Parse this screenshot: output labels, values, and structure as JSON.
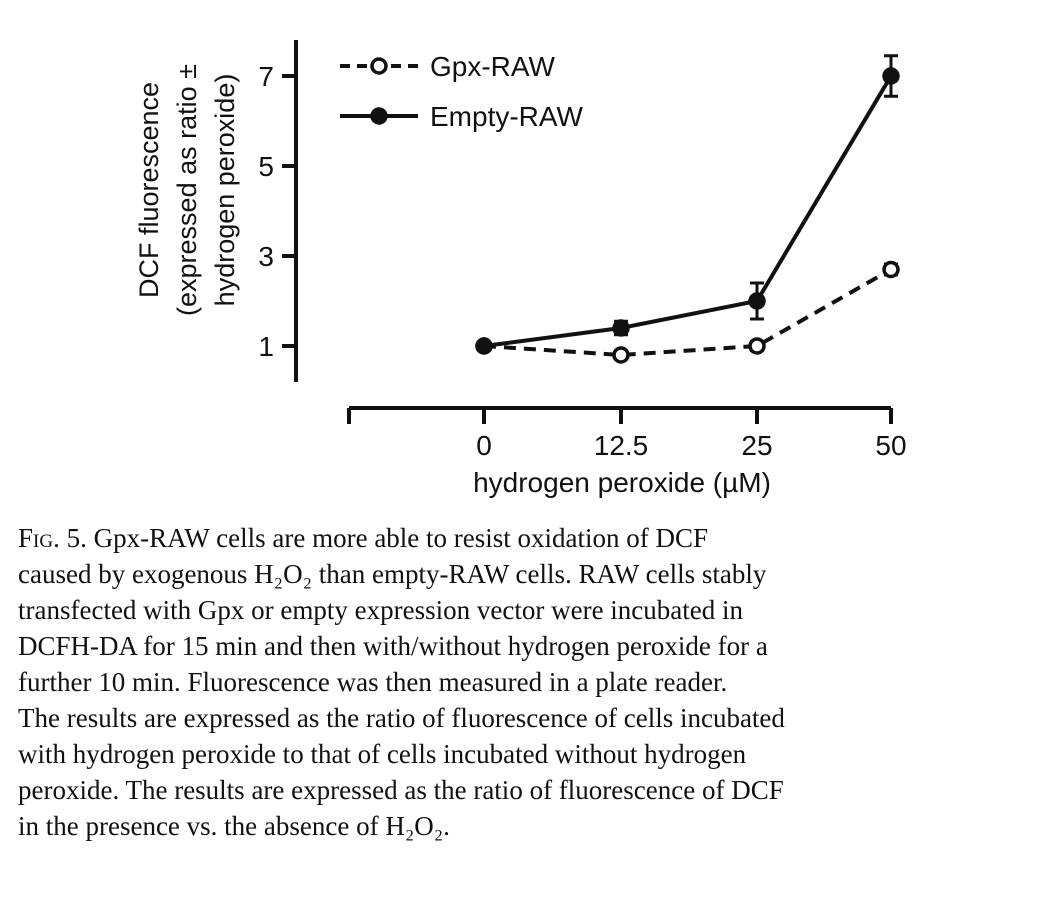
{
  "chart_data": {
    "type": "line",
    "ylabel_lines": [
      "DCF fluorescence",
      "(expressed as ratio ±",
      "hydrogen peroxide)"
    ],
    "xlabel": "hydrogen peroxide (µM)",
    "categories": [
      "0",
      "12.5",
      "25",
      "50"
    ],
    "y_ticks": [
      1,
      3,
      5,
      7
    ],
    "ylim": [
      0.2,
      7.8
    ],
    "legend_position": "top-left",
    "series": [
      {
        "name": "Gpx-RAW",
        "style": "dashed-open-circle",
        "values": [
          1.0,
          0.8,
          1.0,
          2.7
        ],
        "errors": [
          0.05,
          0.05,
          0.1,
          0.12
        ]
      },
      {
        "name": "Empty-RAW",
        "style": "solid-filled-circle",
        "values": [
          1.0,
          1.4,
          2.0,
          7.0
        ],
        "errors": [
          0.05,
          0.15,
          0.4,
          0.45
        ]
      }
    ],
    "colors": {
      "line": "#111111",
      "background": "#ffffff"
    }
  },
  "caption": {
    "fig_label": "Fig. 5.",
    "lines": [
      "Gpx-RAW cells are more able to resist oxidation of DCF",
      "caused by exogenous H₂O₂ than empty-RAW cells. RAW cells stably",
      "transfected with Gpx or empty expression vector were incubated in",
      "DCFH-DA for 15 min and then with/without hydrogen peroxide for a",
      "further 10 min. Fluorescence was then measured in a plate reader.",
      "The results are expressed as the ratio of fluorescence of cells incubated",
      "with hydrogen peroxide to that of cells incubated without hydrogen",
      "peroxide. The results are expressed as the ratio of fluorescence of DCF",
      "in the presence vs. the absence of H₂O₂."
    ]
  }
}
